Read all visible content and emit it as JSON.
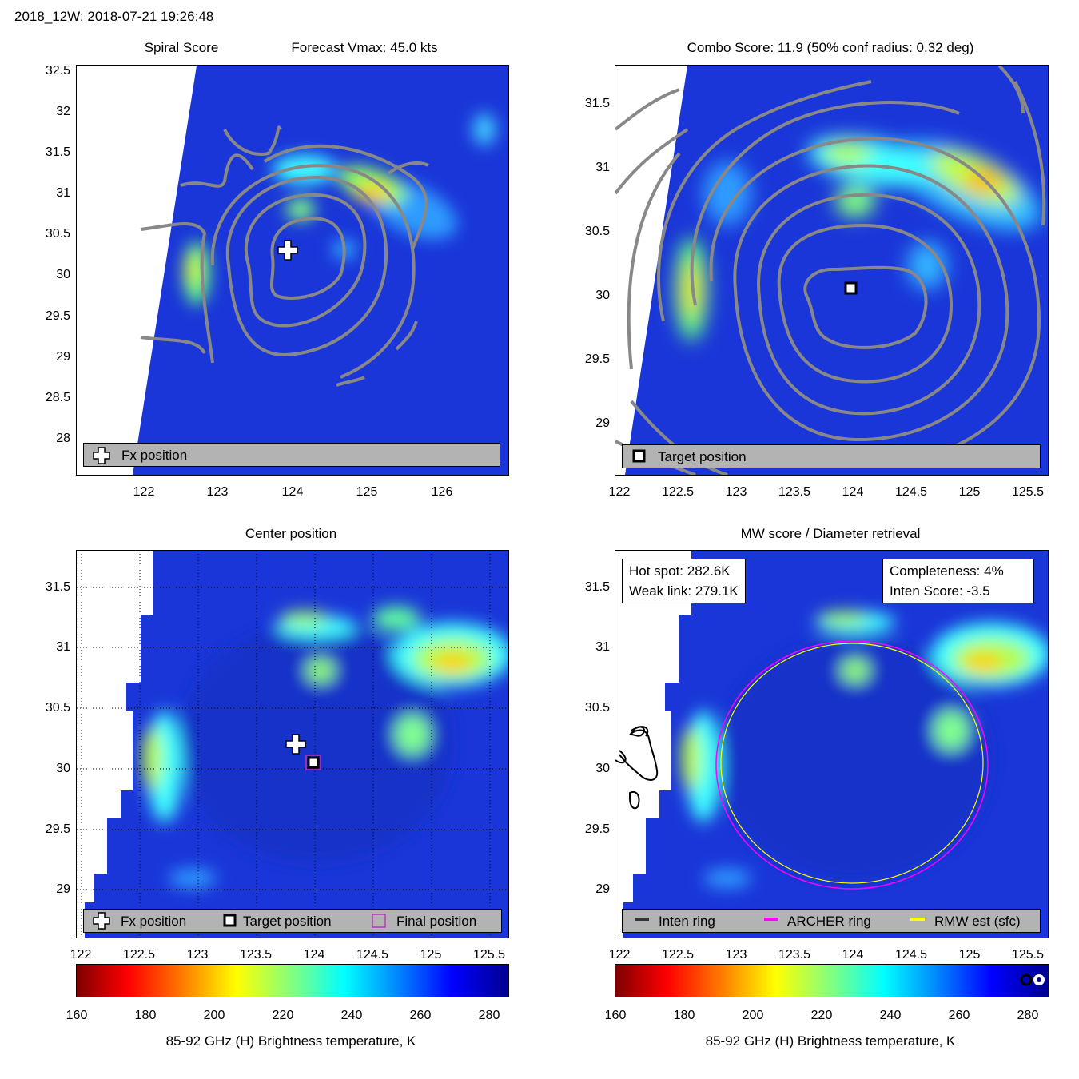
{
  "header": {
    "storm_time": "2018_12W: 2018-07-21 19:26:48"
  },
  "panels": {
    "spiral": {
      "title_left": "Spiral Score",
      "title_right": "Forecast Vmax: 45.0 kts",
      "xticks": [
        "122",
        "123",
        "124",
        "125",
        "126"
      ],
      "yticks": [
        "32.5",
        "32",
        "31.5",
        "31",
        "30.5",
        "30",
        "29.5",
        "29",
        "28.5",
        "28"
      ],
      "legend": {
        "fx": "Fx position"
      }
    },
    "combo": {
      "title": "Combo Score: 11.9  (50% conf radius: 0.32 deg)",
      "xticks": [
        "122",
        "122.5",
        "123",
        "123.5",
        "124",
        "124.5",
        "125",
        "125.5"
      ],
      "yticks": [
        "31.5",
        "31",
        "30.5",
        "30",
        "29.5",
        "29"
      ],
      "legend": {
        "target": "Target position"
      }
    },
    "center": {
      "title": "Center position",
      "xticks": [
        "122",
        "122.5",
        "123",
        "123.5",
        "124",
        "124.5",
        "125",
        "125.5"
      ],
      "yticks": [
        "31.5",
        "31",
        "30.5",
        "30",
        "29.5",
        "29"
      ],
      "legend": {
        "fx": "Fx position",
        "target": "Target position",
        "final": "Final position"
      }
    },
    "mw": {
      "title": "MW score / Diameter retrieval",
      "xticks": [
        "122",
        "122.5",
        "123",
        "123.5",
        "124",
        "124.5",
        "125",
        "125.5"
      ],
      "yticks": [
        "31.5",
        "31",
        "30.5",
        "30",
        "29.5",
        "29"
      ],
      "hot_spot": "Hot spot: 282.6K",
      "weak_link": "Weak link: 279.1K",
      "completeness": "Completeness: 4%",
      "inten_score": "Inten Score: -3.5",
      "legend": {
        "inten": "Inten ring",
        "archer": "ARCHER ring",
        "rmw": "RMW est (sfc)"
      }
    }
  },
  "colorbar": {
    "ticks": [
      "160",
      "180",
      "200",
      "220",
      "240",
      "260",
      "280"
    ],
    "label": "85-92 GHz (H) Brightness temperature, K"
  },
  "colors": {
    "ocean_background": "#1a36d8",
    "archer_ring": "#ff00ff",
    "rmw_ring": "#ffff00",
    "contour": "#888888"
  },
  "chart_data": [
    {
      "type": "heatmap",
      "title": "Spiral Score",
      "xlim": [
        121.0,
        126.8
      ],
      "ylim": [
        27.55,
        32.55
      ],
      "colorscale_range_K": [
        160,
        285
      ],
      "fx_position": {
        "lon": 123.8,
        "lat": 30.2
      },
      "annotations": [
        "Forecast Vmax: 45.0 kts"
      ]
    },
    {
      "type": "heatmap",
      "title": "Combo Score: 11.9  (50% conf radius: 0.32 deg)",
      "xlim": [
        122.0,
        125.65
      ],
      "ylim": [
        28.6,
        31.8
      ],
      "target_position": {
        "lon": 124.0,
        "lat": 30.05
      }
    },
    {
      "type": "heatmap",
      "title": "Center position",
      "xlim": [
        122.0,
        125.65
      ],
      "ylim": [
        28.6,
        31.8
      ],
      "fx_position": {
        "lon": 123.8,
        "lat": 30.2
      },
      "target_position": {
        "lon": 123.98,
        "lat": 30.05
      },
      "final_position": {
        "lon": 123.98,
        "lat": 30.05
      }
    },
    {
      "type": "heatmap",
      "title": "MW score / Diameter retrieval",
      "xlim": [
        122.0,
        125.65
      ],
      "ylim": [
        28.6,
        31.8
      ],
      "hot_spot_K": 282.6,
      "weak_link_K": 279.1,
      "completeness_pct": 4,
      "inten_score": -3.5,
      "archer_ring": {
        "center_lon": 124.0,
        "center_lat": 30.05,
        "radius_lon": 1.2,
        "radius_lat": 1.0
      },
      "rmw_ring": {
        "center_lon": 124.0,
        "center_lat": 30.05,
        "radius_lon": 1.16,
        "radius_lat": 0.98
      }
    }
  ]
}
